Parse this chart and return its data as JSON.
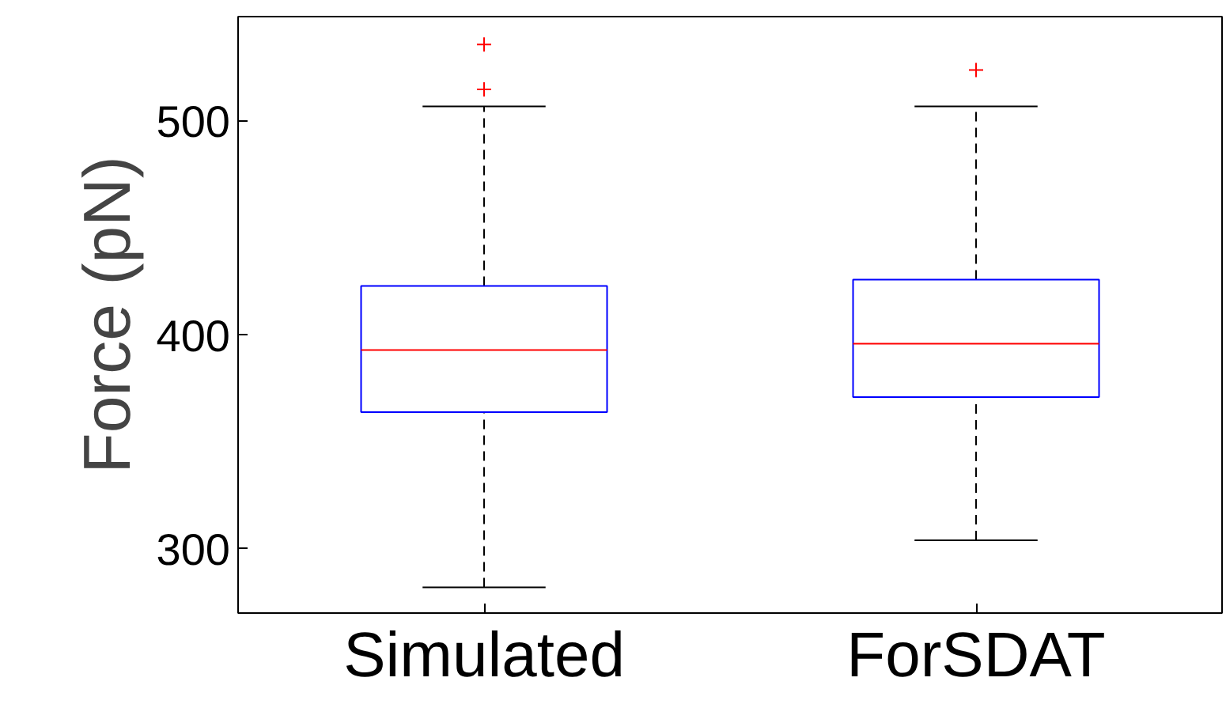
{
  "chart_data": {
    "type": "box",
    "ylabel": "Force (pN)",
    "categories": [
      "Simulated",
      "ForSDAT"
    ],
    "boxes": [
      {
        "low": 282,
        "q1": 364,
        "median": 393,
        "q3": 423,
        "high": 507,
        "outliers": [
          515,
          536
        ]
      },
      {
        "low": 304,
        "q1": 371,
        "median": 396,
        "q3": 426,
        "high": 507,
        "outliers": [
          524
        ]
      }
    ],
    "ylim": [
      270,
      549
    ],
    "yticks": [
      300,
      400,
      500
    ],
    "grid": false
  }
}
